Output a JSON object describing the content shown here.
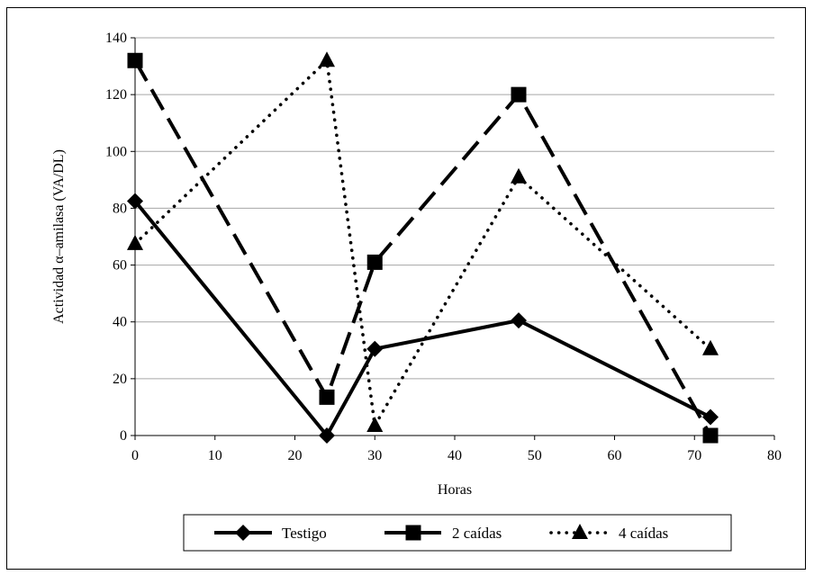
{
  "chart_data": {
    "type": "line",
    "title": "",
    "xlabel": "Horas",
    "ylabel": "Actividad α–amilasa (VA/DL)",
    "xlim": [
      0,
      80
    ],
    "ylim": [
      0,
      140
    ],
    "x_ticks": [
      "0",
      "10",
      "20",
      "30",
      "40",
      "50",
      "60",
      "70",
      "80"
    ],
    "y_ticks": [
      "0",
      "20",
      "40",
      "60",
      "80",
      "100",
      "120",
      "140"
    ],
    "grid": "horizontal",
    "legend_position": "bottom",
    "series": [
      {
        "name": "Testigo",
        "style": "solid",
        "marker": "diamond",
        "x": [
          0,
          24,
          30,
          48,
          72
        ],
        "values": [
          82.5,
          0,
          30.5,
          40.5,
          6.5
        ]
      },
      {
        "name": "2 caídas",
        "style": "dashed",
        "marker": "square",
        "x": [
          0,
          24,
          30,
          48,
          72
        ],
        "values": [
          132,
          13.5,
          61,
          120,
          0
        ]
      },
      {
        "name": "4 caídas",
        "style": "dotted",
        "marker": "triangle",
        "x": [
          0,
          24,
          30,
          48,
          72
        ],
        "values": [
          67.5,
          132,
          3.5,
          91,
          30.5
        ]
      }
    ]
  }
}
